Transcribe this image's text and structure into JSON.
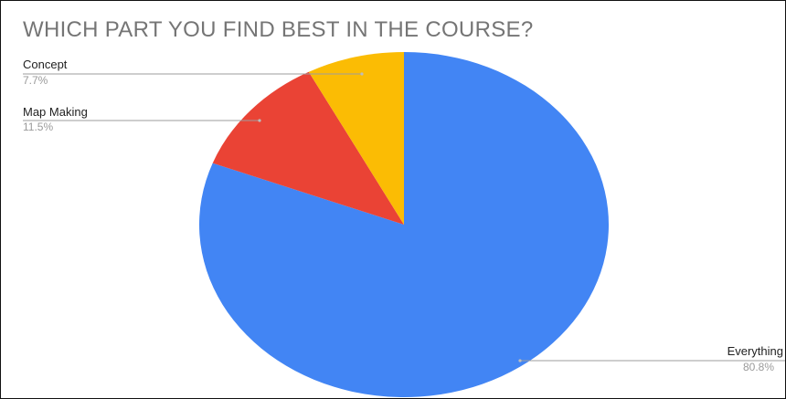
{
  "chart_data": {
    "type": "pie",
    "title": "WHICH PART YOU FIND BEST IN THE COURSE?",
    "slices": [
      {
        "label": "Everything",
        "value": 80.8,
        "pct_label": "80.8%",
        "color": "#4285f4"
      },
      {
        "label": "Map Making",
        "value": 11.5,
        "pct_label": "11.5%",
        "color": "#ea4335"
      },
      {
        "label": "Concept",
        "value": 7.7,
        "pct_label": "7.7%",
        "color": "#fbbc04"
      }
    ],
    "legend": "none"
  }
}
